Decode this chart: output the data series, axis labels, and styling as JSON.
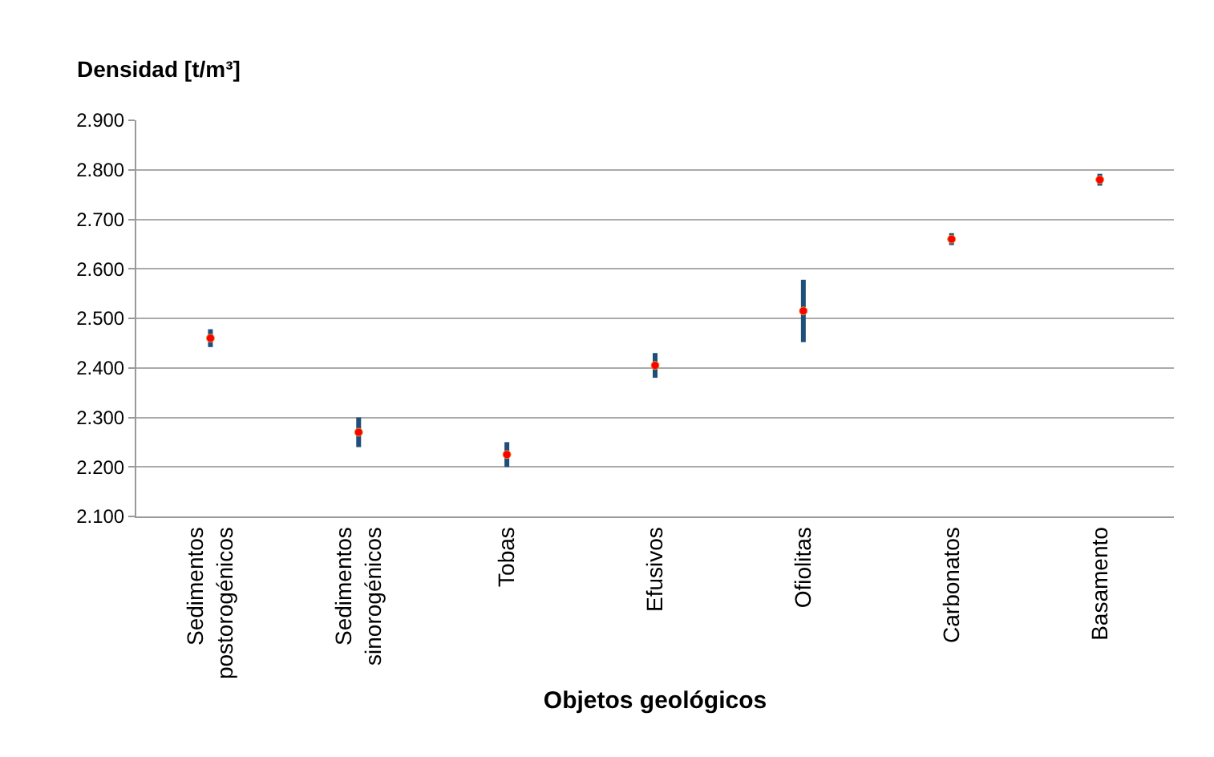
{
  "chart_data": {
    "type": "scatter",
    "ylabel": "Densidad [t/m³]",
    "xlabel": "Objetos geológicos",
    "categories": [
      "Sedimentos\npostorogénicos",
      "Sedimentos\nsinorogénicos",
      "Tobas",
      "Efusivos",
      "Ofiolitas",
      "Carbonatos",
      "Basamento"
    ],
    "series": [
      {
        "color": "#ff0000",
        "values": [
          2.46,
          2.27,
          2.225,
          2.405,
          2.515,
          2.66,
          2.78
        ],
        "errors": [
          0.018,
          0.03,
          0.025,
          0.025,
          0.063,
          0.012,
          0.012
        ]
      }
    ],
    "ylim": [
      2.1,
      2.9
    ],
    "yticks": [
      {
        "value": 2.1,
        "label": "2.100"
      },
      {
        "value": 2.2,
        "label": "2.200"
      },
      {
        "value": 2.3,
        "label": "2.300"
      },
      {
        "value": 2.4,
        "label": "2.400"
      },
      {
        "value": 2.5,
        "label": "2.500"
      },
      {
        "value": 2.6,
        "label": "2.600"
      },
      {
        "value": 2.7,
        "label": "2.700"
      },
      {
        "value": 2.8,
        "label": "2.800"
      },
      {
        "value": 2.9,
        "label": "2.900"
      }
    ],
    "grid": "y",
    "marker": "circle"
  }
}
